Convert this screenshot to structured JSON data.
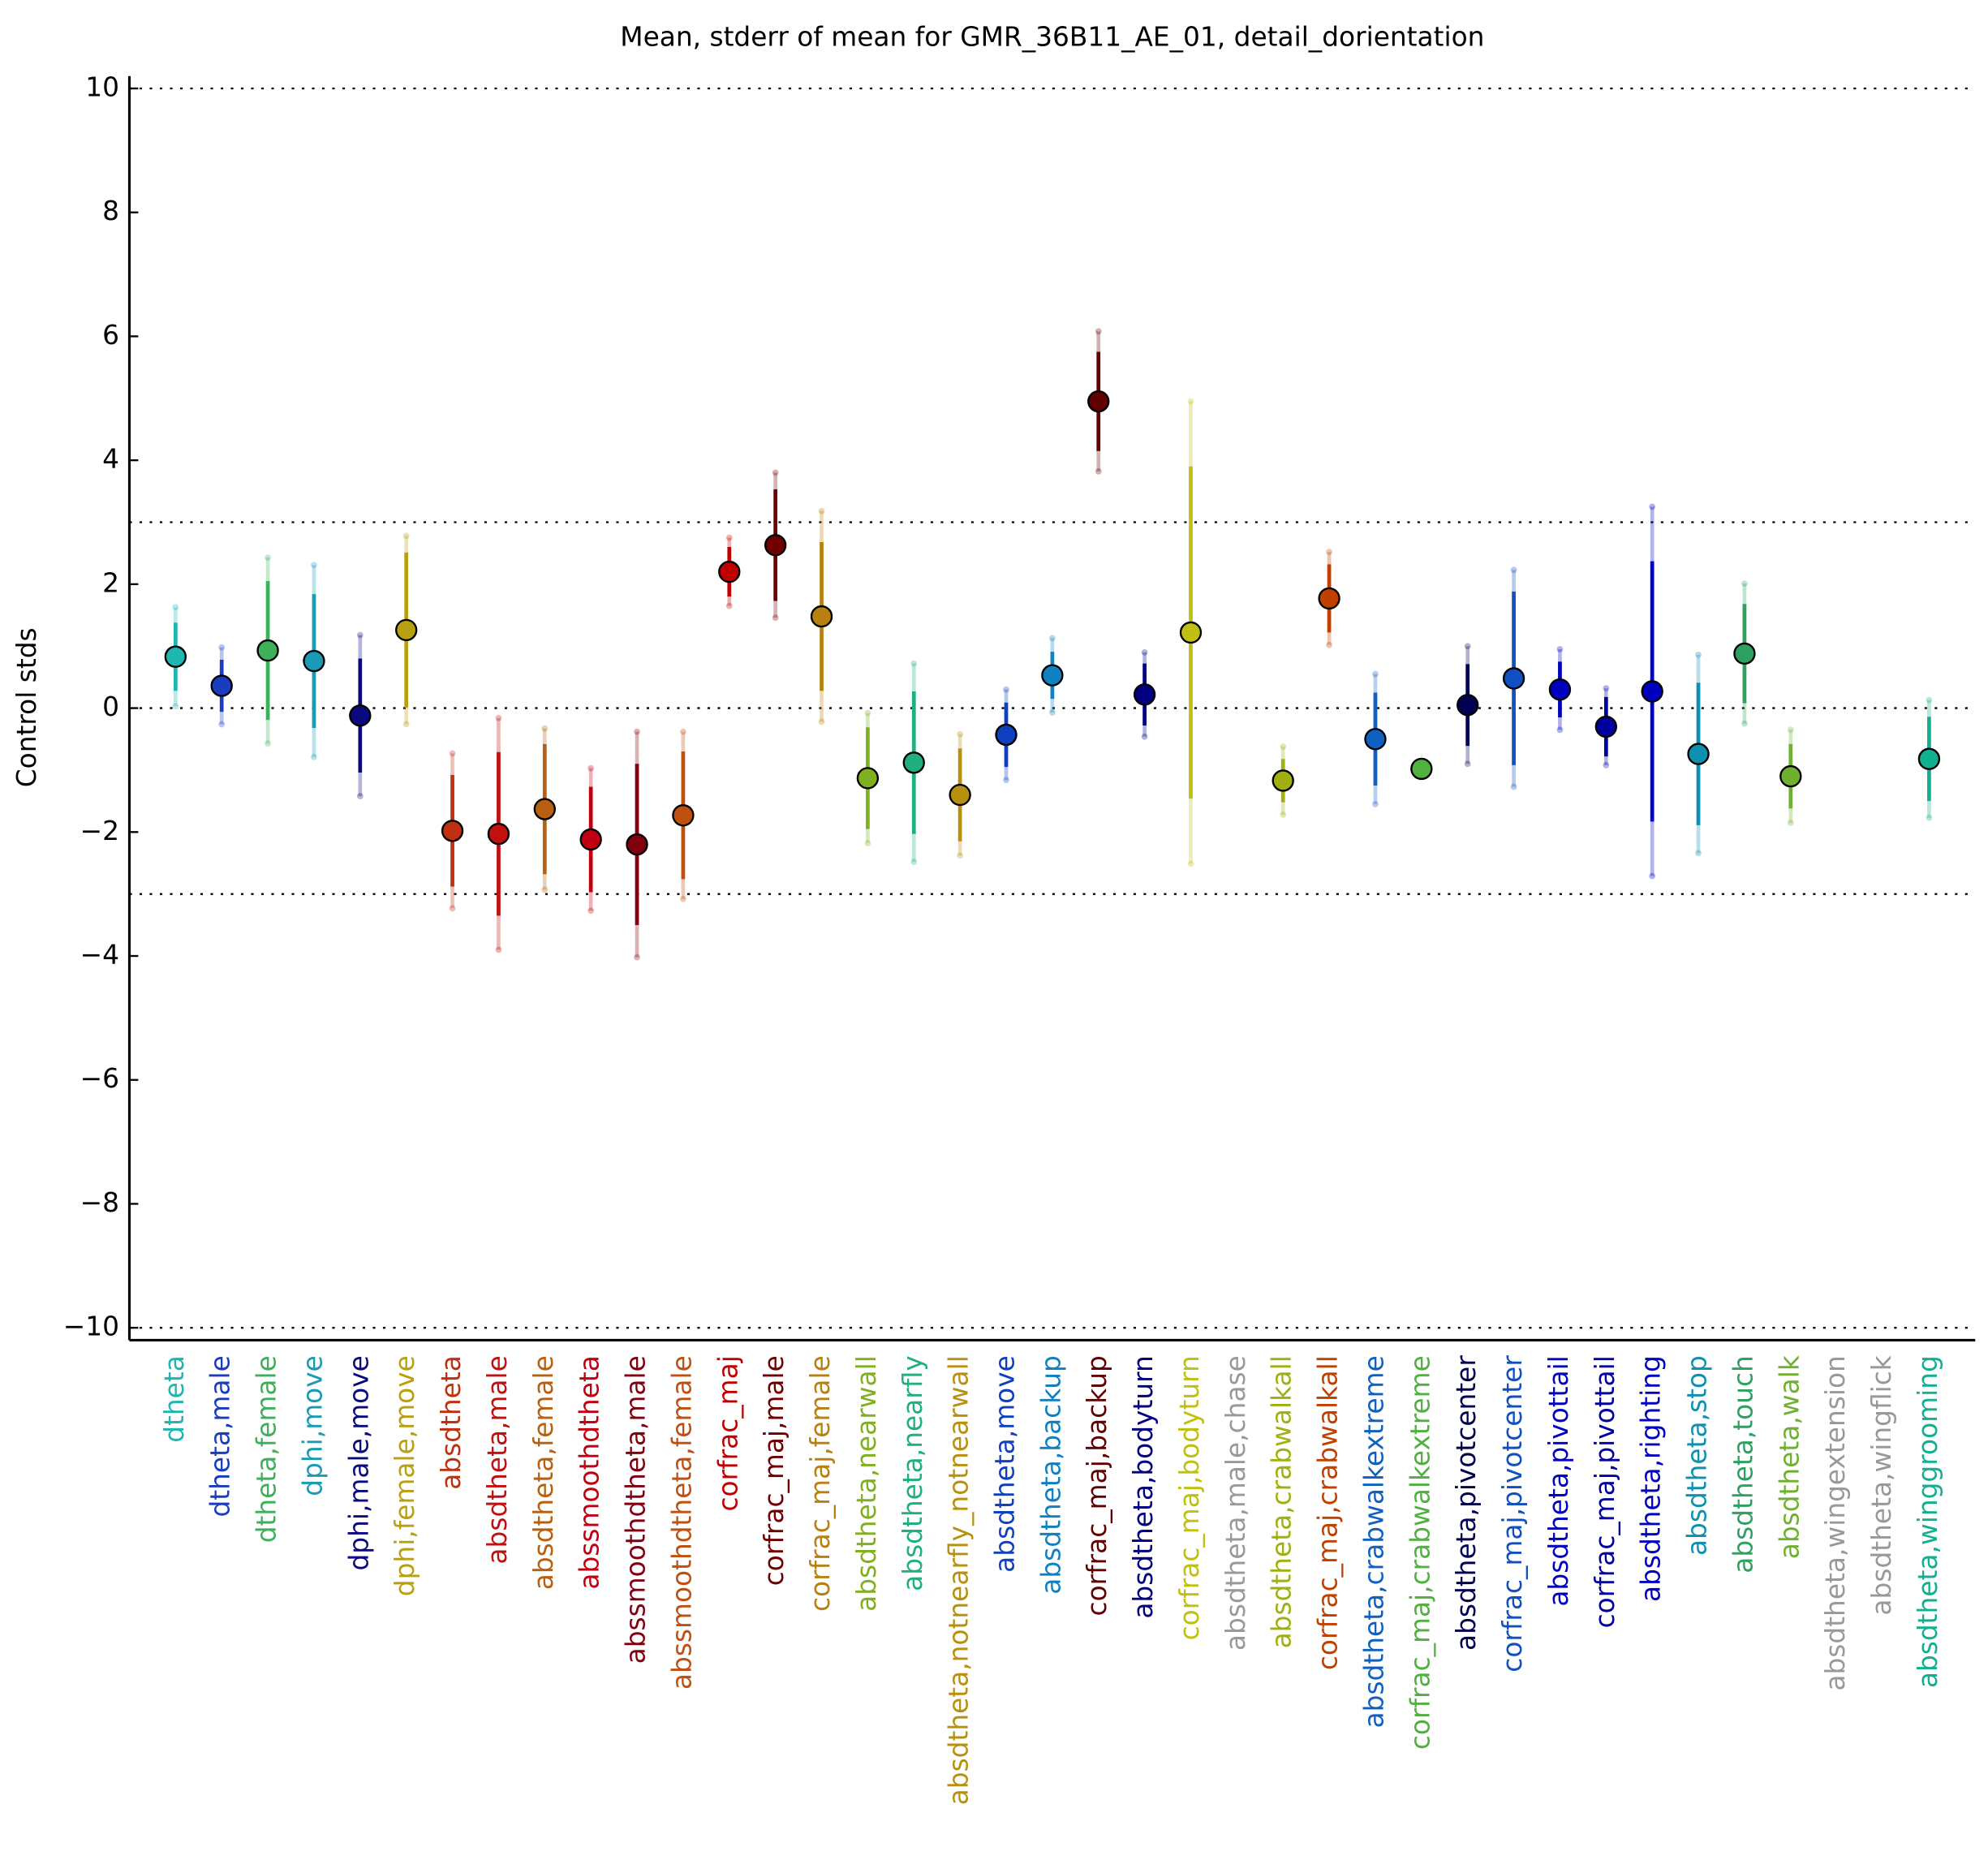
{
  "chart_data": {
    "type": "errorbar",
    "title": "Mean, stderr of mean for GMR_36B11_AE_01, detail_dorientation",
    "ylabel": "Control stds",
    "categories": [
      "dtheta",
      "dtheta,male",
      "dtheta,female",
      "dphi,move",
      "dphi,male,move",
      "dphi,female,move",
      "absdtheta",
      "absdtheta,male",
      "absdtheta,female",
      "abssmoothdtheta",
      "abssmoothdtheta,male",
      "abssmoothdtheta,female",
      "corfrac_maj",
      "corfrac_maj,male",
      "corfrac_maj,female",
      "absdtheta,nearwall",
      "absdtheta,nearfly",
      "absdtheta,notnearfly_notnearwall",
      "absdtheta,move",
      "absdtheta,backup",
      "corfrac_maj,backup",
      "absdtheta,bodyturn",
      "corfrac_maj,bodyturn",
      "absdtheta,male,chase",
      "absdtheta,crabwalkall",
      "corfrac_maj,crabwalkall",
      "absdtheta,crabwalkextreme",
      "corfrac_maj,crabwalkextreme",
      "absdtheta,pivotcenter",
      "corfrac_maj,pivotcenter",
      "absdtheta,pivottail",
      "corfrac_maj,pivottail",
      "absdtheta,righting",
      "absdtheta,stop",
      "absdtheta,touch",
      "absdtheta,walk",
      "absdtheta,wingextension",
      "absdtheta,wingflick",
      "absdtheta,winggrooming"
    ],
    "values": [
      0.83,
      0.36,
      0.93,
      0.76,
      -0.12,
      1.26,
      -1.98,
      -2.03,
      -1.63,
      -2.12,
      -2.2,
      -1.73,
      2.2,
      2.63,
      1.48,
      -1.13,
      -0.88,
      -1.4,
      -0.43,
      0.53,
      4.95,
      0.22,
      1.22,
      null,
      -1.17,
      1.77,
      -0.5,
      -0.98,
      0.05,
      0.48,
      0.3,
      -0.3,
      0.27,
      -0.74,
      0.88,
      -1.1,
      null,
      null,
      -0.82
    ],
    "stderr": [
      0.55,
      0.42,
      1.12,
      1.08,
      0.92,
      1.25,
      0.9,
      1.32,
      1.05,
      0.85,
      1.3,
      1.03,
      0.4,
      0.9,
      1.2,
      0.82,
      1.15,
      0.75,
      0.52,
      0.38,
      0.8,
      0.5,
      2.68,
      null,
      0.35,
      0.55,
      0.75,
      0,
      0.66,
      1.4,
      0.45,
      0.48,
      2.1,
      1.15,
      0.8,
      0.52,
      null,
      null,
      0.68
    ],
    "spread": [
      0.8,
      0.62,
      1.5,
      1.55,
      1.3,
      1.52,
      1.25,
      1.87,
      1.3,
      1.15,
      1.82,
      1.35,
      0.55,
      1.17,
      1.7,
      1.05,
      1.6,
      0.98,
      0.73,
      0.6,
      1.13,
      0.68,
      3.73,
      null,
      0.55,
      0.75,
      1.05,
      0,
      0.95,
      1.75,
      0.65,
      0.62,
      2.98,
      1.6,
      1.13,
      0.75,
      null,
      null,
      0.95
    ],
    "colors": [
      "#1fb5b0",
      "#1a3dbf",
      "#3fb05a",
      "#1a9ab5",
      "#0a0a80",
      "#b8a010",
      "#c03010",
      "#c01010",
      "#b86010",
      "#c00010",
      "#800010",
      "#c05010",
      "#c00000",
      "#700000",
      "#b88010",
      "#80b020",
      "#20b080",
      "#b89010",
      "#1040c0",
      "#1080c0",
      "#600000",
      "#000080",
      "#c0c010",
      "#999999",
      "#a0b010",
      "#c04000",
      "#1060c0",
      "#50b040",
      "#000050",
      "#1050c0",
      "#0000c0",
      "#0000a0",
      "#0000c0",
      "#1090b0",
      "#30a060",
      "#70b030",
      "#999999",
      "#999999",
      "#10b090"
    ],
    "xlim": [
      0,
      40
    ],
    "ylim": [
      -10.2,
      10.2
    ],
    "yticks": [
      {
        "value": -10,
        "label": "−10"
      },
      {
        "value": -8,
        "label": "−8"
      },
      {
        "value": -6,
        "label": "−6"
      },
      {
        "value": -4,
        "label": "−4"
      },
      {
        "value": -2,
        "label": "−2"
      },
      0,
      2,
      4,
      6,
      8,
      10
    ],
    "hlines": [
      -10,
      -3,
      0,
      3,
      10
    ]
  }
}
